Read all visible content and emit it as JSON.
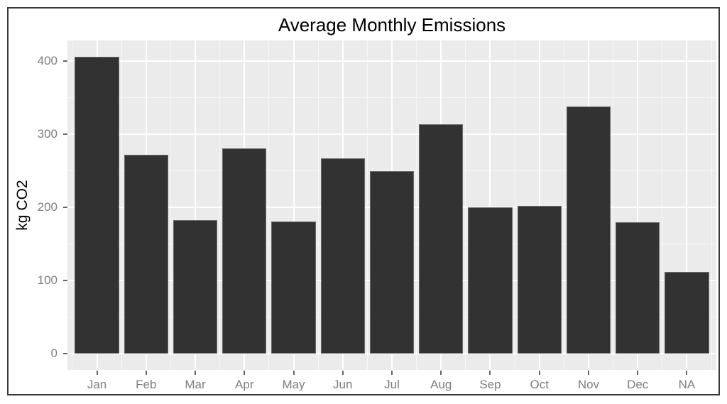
{
  "chart_data": {
    "type": "bar",
    "title": "Average Monthly Emissions",
    "xlabel": "",
    "ylabel": "kg CO2",
    "categories": [
      "Jan",
      "Feb",
      "Mar",
      "Apr",
      "May",
      "Jun",
      "Jul",
      "Aug",
      "Sep",
      "Oct",
      "Nov",
      "Dec",
      "NA"
    ],
    "values": [
      406,
      272,
      183,
      281,
      181,
      267,
      250,
      314,
      200,
      202,
      338,
      180,
      112
    ],
    "y_major_ticks": [
      0,
      100,
      200,
      300,
      400
    ],
    "y_minor_gridlines": [
      50,
      150,
      250,
      350
    ],
    "ylim": [
      -22,
      428
    ],
    "grid": "major and minor, white on grey panel",
    "legend": "none",
    "colors": {
      "bar_fill": "#323232",
      "bar_edge": "#6A6A6A",
      "panel_background": "#EBEBEB",
      "gridline_major": "#FFFFFF",
      "axis_text": "#7E7E7E",
      "tick_mark": "#666666",
      "title_text": "#000000",
      "frame_border": "#3A3A3A"
    }
  }
}
